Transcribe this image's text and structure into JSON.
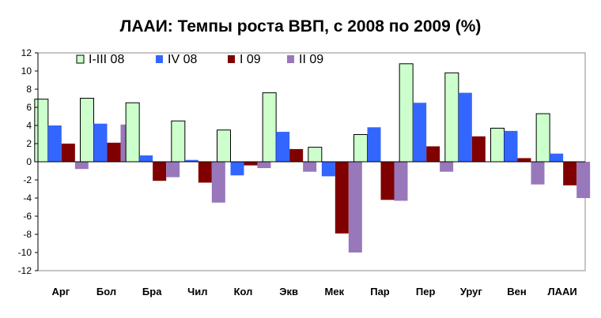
{
  "chart_data": {
    "type": "bar",
    "title": "ЛААИ: Темпы роста ВВП, с 2008 по 2009 (%)",
    "xlabel": "",
    "ylabel": "",
    "ylim": [
      -12,
      12
    ],
    "yticks": [
      12,
      10,
      8,
      6,
      4,
      2,
      0,
      -2,
      -4,
      -6,
      -8,
      -10,
      -12
    ],
    "grid": false,
    "legend_position": "top",
    "categories": [
      "Арг",
      "Бол",
      "Бра",
      "Чил",
      "Кол",
      "Экв",
      "Мек",
      "Пар",
      "Пер",
      "Уруг",
      "Вен",
      "ЛААИ"
    ],
    "series": [
      {
        "name": "I-III 08",
        "color": "#ccffcc",
        "values": [
          6.9,
          7.0,
          6.5,
          4.5,
          3.5,
          7.6,
          1.6,
          3.0,
          10.8,
          9.8,
          3.7,
          5.3
        ]
      },
      {
        "name": "IV 08",
        "color": "#3366ff",
        "values": [
          4.0,
          4.2,
          0.7,
          0.2,
          -1.5,
          3.3,
          -1.6,
          3.8,
          6.5,
          7.6,
          3.4,
          0.9
        ]
      },
      {
        "name": "I 09",
        "color": "#800000",
        "values": [
          2.0,
          2.1,
          -2.1,
          -2.3,
          -0.4,
          1.4,
          -7.9,
          -4.2,
          1.7,
          2.8,
          0.4,
          -2.6
        ]
      },
      {
        "name": "II 09",
        "color": "#9977bb",
        "values": [
          -0.8,
          4.1,
          -1.7,
          -4.5,
          -0.7,
          -1.1,
          -10.0,
          -4.3,
          -1.1,
          0.0,
          -2.5,
          -4.0
        ]
      }
    ]
  }
}
